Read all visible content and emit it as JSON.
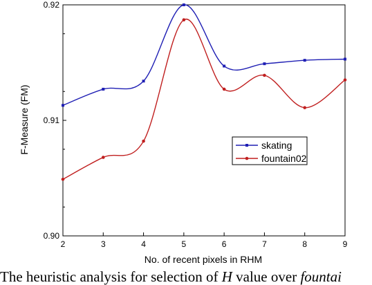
{
  "chart_data": {
    "type": "line",
    "title": "",
    "xlabel": "No. of recent pixels in RHM",
    "ylabel": "F-Measure (FM)",
    "x": [
      2,
      3,
      4,
      5,
      6,
      7,
      8,
      9
    ],
    "xlim": [
      2,
      9
    ],
    "ylim": [
      0.9,
      0.92
    ],
    "xticks": [
      "2",
      "3",
      "4",
      "5",
      "6",
      "7",
      "8",
      "9"
    ],
    "yticks": [
      "0.90",
      "0.91",
      "0.92"
    ],
    "grid": false,
    "legend_position": "right-middle",
    "series": [
      {
        "name": "skating",
        "color": "#1f1fb4",
        "values": [
          0.9113,
          0.9127,
          0.9134,
          0.92,
          0.9147,
          0.9149,
          0.9152,
          0.9153
        ]
      },
      {
        "name": "fountain02",
        "color": "#c01f1f",
        "values": [
          0.9049,
          0.9068,
          0.9082,
          0.9187,
          0.9127,
          0.9139,
          0.9111,
          0.9135
        ]
      }
    ]
  },
  "caption": {
    "part1": "The heuristic analysis for selection of ",
    "var": "H",
    "part2": " value over ",
    "dataset": "fountai"
  }
}
